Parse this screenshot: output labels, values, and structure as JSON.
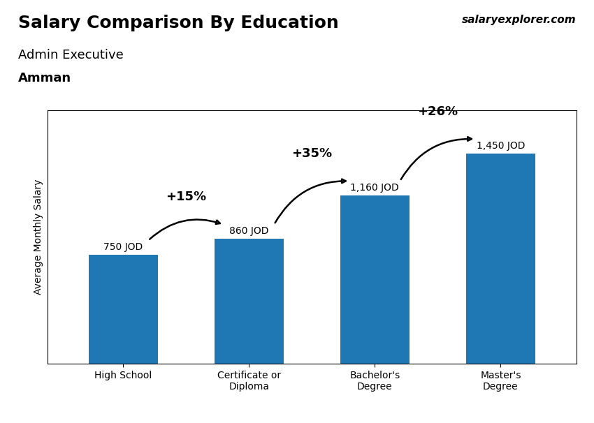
{
  "chart_data": {
    "type": "bar",
    "title": "Salary Comparison By Education",
    "subtitle": "Admin Executive",
    "ylabel": "Average Monthly Salary",
    "categories": [
      "High School",
      "Certificate or\nDiploma",
      "Bachelor's\nDegree",
      "Master's\nDegree"
    ],
    "values": [
      750,
      860,
      1160,
      1450
    ],
    "value_labels": [
      "750 JOD",
      "860 JOD",
      "1,160 JOD",
      "1,450 JOD"
    ],
    "data_labels": true,
    "change_labels": [
      "+15%",
      "+35%",
      "+26%"
    ],
    "annotations": [
      "Amman",
      "salaryexplorer.com"
    ],
    "ylim": [
      0,
      1750
    ],
    "tick_labels": "x",
    "grid": false
  }
}
